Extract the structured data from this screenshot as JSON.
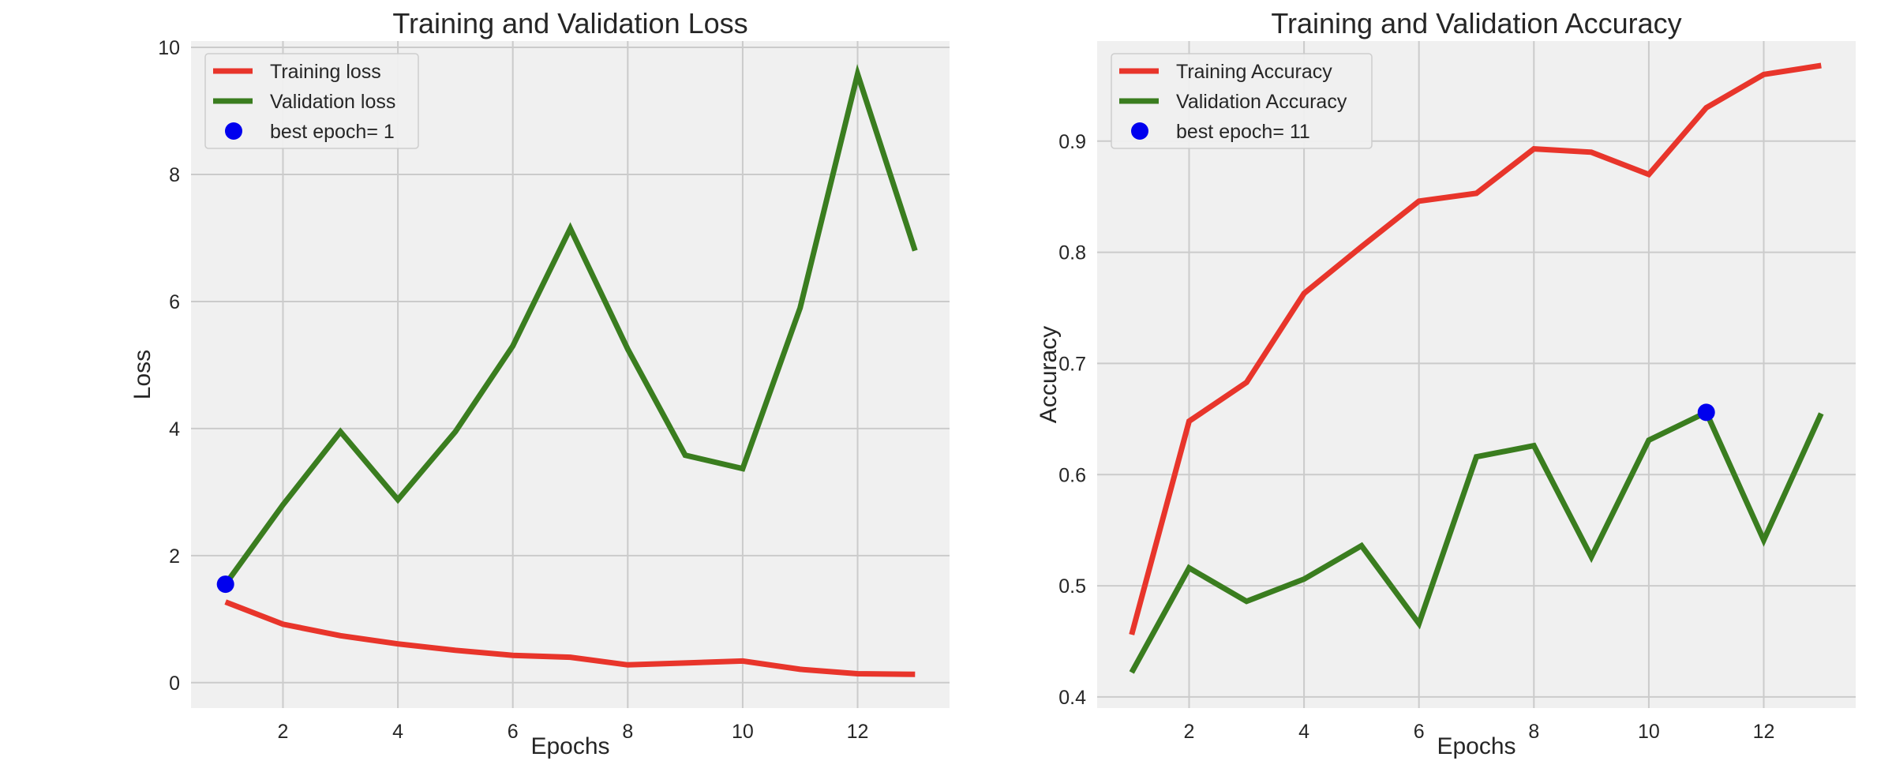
{
  "chart_data": [
    {
      "type": "line",
      "title": "Training and Validation Loss",
      "xlabel": "Epochs",
      "ylabel": "Loss",
      "xlim": [
        0.4,
        13.6
      ],
      "ylim": [
        -0.4,
        10.1
      ],
      "xticks": [
        2,
        4,
        6,
        8,
        10,
        12
      ],
      "yticks": [
        0,
        2,
        4,
        6,
        8,
        10
      ],
      "grid": true,
      "legend_position": "top-left",
      "x": [
        1,
        2,
        3,
        4,
        5,
        6,
        7,
        8,
        9,
        10,
        11,
        12,
        13
      ],
      "series": [
        {
          "name": "Training loss",
          "color": "#e8352b",
          "values": [
            1.27,
            0.92,
            0.74,
            0.61,
            0.51,
            0.43,
            0.4,
            0.28,
            0.31,
            0.34,
            0.21,
            0.14,
            0.13
          ]
        },
        {
          "name": "Validation loss",
          "color": "#3a7d1f",
          "values": [
            1.55,
            2.8,
            3.95,
            2.88,
            3.95,
            5.3,
            7.15,
            5.25,
            3.58,
            3.37,
            5.9,
            9.58,
            6.8
          ]
        }
      ],
      "marker": {
        "name": "best epoch= 1",
        "color": "#0000ee",
        "x": 1,
        "y": 1.55
      }
    },
    {
      "type": "line",
      "title": "Training and Validation Accuracy",
      "xlabel": "Epochs",
      "ylabel": "Accuracy",
      "xlim": [
        0.4,
        13.6
      ],
      "ylim": [
        0.39,
        0.99
      ],
      "xticks": [
        2,
        4,
        6,
        8,
        10,
        12
      ],
      "yticks": [
        0.4,
        0.5,
        0.6,
        0.7,
        0.8,
        0.9
      ],
      "grid": true,
      "legend_position": "top-left",
      "x": [
        1,
        2,
        3,
        4,
        5,
        6,
        7,
        8,
        9,
        10,
        11,
        12,
        13
      ],
      "series": [
        {
          "name": "Training Accuracy",
          "color": "#e8352b",
          "values": [
            0.456,
            0.648,
            0.683,
            0.763,
            0.805,
            0.846,
            0.853,
            0.893,
            0.89,
            0.87,
            0.93,
            0.96,
            0.968
          ]
        },
        {
          "name": "Validation Accuracy",
          "color": "#3a7d1f",
          "values": [
            0.422,
            0.516,
            0.486,
            0.506,
            0.536,
            0.466,
            0.616,
            0.626,
            0.526,
            0.631,
            0.656,
            0.541,
            0.655
          ]
        }
      ],
      "marker": {
        "name": "best epoch= 11",
        "color": "#0000ee",
        "x": 11,
        "y": 0.656
      }
    }
  ]
}
